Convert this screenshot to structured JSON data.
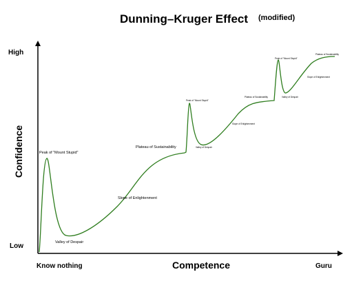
{
  "chart_data": {
    "type": "line",
    "title": "Dunning–Kruger Effect",
    "subtitle": "(modified)",
    "xlabel": "Competence",
    "ylabel": "Confidence",
    "x_ticks": [
      "Know nothing",
      "Guru"
    ],
    "y_ticks": [
      "Low",
      "High"
    ],
    "line_color": "#2e7d1e",
    "grid": false,
    "annotations": [
      {
        "text": "Peak of \"Mount Stupid\"",
        "size": "normal"
      },
      {
        "text": "Valley of Despair",
        "size": "normal"
      },
      {
        "text": "Slope of Enlightenment",
        "size": "normal"
      },
      {
        "text": "Plateau of Sustainability",
        "size": "normal"
      },
      {
        "text": "Peak of \"Mount Stupid\"",
        "size": "tiny"
      },
      {
        "text": "Valley of Despair",
        "size": "tiny"
      },
      {
        "text": "Slope of Enlightenment",
        "size": "tiny"
      },
      {
        "text": "Plateau of Sustainability",
        "size": "tiny"
      },
      {
        "text": "Peak of \"Mount Stupid\"",
        "size": "tiny"
      },
      {
        "text": "Valley of Despair",
        "size": "tiny"
      },
      {
        "text": "Slope of Enlightenment",
        "size": "tiny"
      },
      {
        "text": "Plateau of Sustainability",
        "size": "tiny"
      }
    ]
  }
}
